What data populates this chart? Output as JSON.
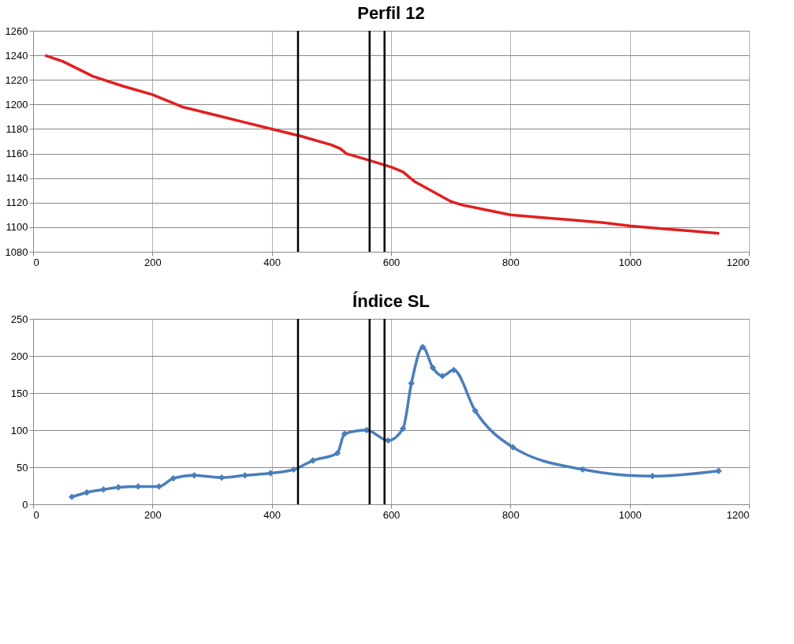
{
  "chart_data": [
    {
      "type": "line",
      "title": "Perfil 12",
      "marker": "none",
      "line_style": "solid",
      "grid": true,
      "xlim": [
        0,
        1200
      ],
      "xticks": [
        0,
        200,
        400,
        600,
        800,
        1000,
        1200
      ],
      "ylim": [
        1080,
        1260
      ],
      "yticks": [
        1080,
        1100,
        1120,
        1140,
        1160,
        1180,
        1200,
        1220,
        1240,
        1260
      ],
      "series": [
        {
          "color": "#e02020",
          "x": [
            20,
            50,
            100,
            150,
            200,
            250,
            300,
            350,
            400,
            450,
            500,
            515,
            525,
            560,
            600,
            620,
            640,
            670,
            700,
            720,
            750,
            800,
            850,
            900,
            950,
            1000,
            1050,
            1100,
            1150
          ],
          "values": [
            1240,
            1235,
            1223,
            1215,
            1208,
            1198,
            1192,
            1186,
            1180,
            1174,
            1167,
            1164,
            1160,
            1155,
            1149,
            1145,
            1137,
            1129,
            1121,
            1118,
            1115,
            1110,
            1108,
            1106,
            1104,
            1101,
            1099,
            1097,
            1095
          ]
        }
      ],
      "ref_lines": [
        {
          "axis": "x",
          "value": 444,
          "color": "#000000"
        },
        {
          "axis": "x",
          "value": 564,
          "color": "#000000"
        },
        {
          "axis": "x",
          "value": 589,
          "color": "#000000"
        }
      ]
    },
    {
      "type": "line",
      "title": "Índice SL",
      "marker": "diamond",
      "line_style": "solid",
      "grid": true,
      "xlim": [
        0,
        1200
      ],
      "xticks": [
        0,
        200,
        400,
        600,
        800,
        1000,
        1200
      ],
      "ylim": [
        0,
        250
      ],
      "yticks": [
        0,
        50,
        100,
        150,
        200,
        250
      ],
      "series": [
        {
          "color": "#4a7ebb",
          "x": [
            65,
            90,
            118,
            143,
            176,
            211,
            235,
            270,
            316,
            355,
            398,
            437,
            469,
            510,
            522,
            559,
            595,
            620,
            634,
            653,
            670,
            686,
            705,
            741,
            804,
            921,
            1038,
            1149
          ],
          "values": [
            10,
            16,
            20,
            23,
            24,
            24,
            35,
            39,
            36,
            39,
            42,
            47,
            59,
            69,
            95,
            100,
            86,
            102,
            163,
            212,
            184,
            173,
            181,
            126,
            77,
            47,
            38,
            45
          ]
        }
      ],
      "ref_lines": [
        {
          "axis": "x",
          "value": 444,
          "color": "#000000"
        },
        {
          "axis": "x",
          "value": 564,
          "color": "#000000"
        },
        {
          "axis": "x",
          "value": 589,
          "color": "#000000"
        }
      ]
    }
  ]
}
